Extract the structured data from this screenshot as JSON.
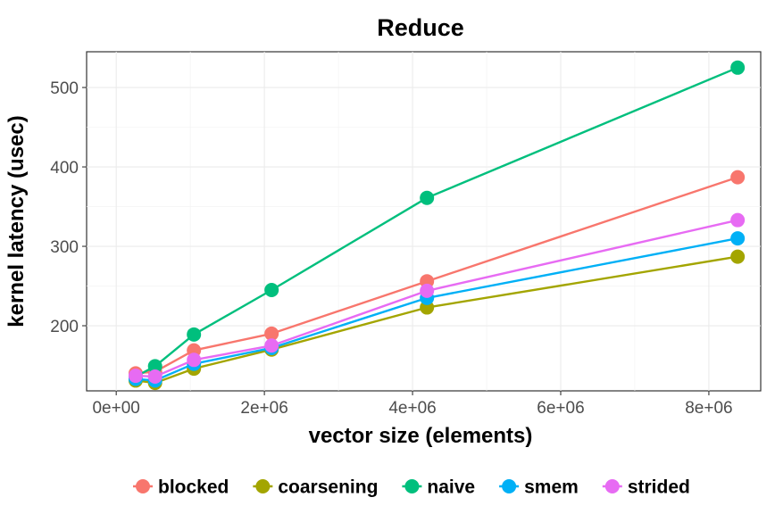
{
  "chart_data": {
    "type": "line",
    "title": "Reduce",
    "xlabel": "vector size (elements)",
    "ylabel": "kernel latency (usec)",
    "xlim": [
      -400000,
      8700000
    ],
    "ylim": [
      118,
      545
    ],
    "x_ticks": [
      {
        "value": 0,
        "label": "0e+00"
      },
      {
        "value": 2000000,
        "label": "2e+06"
      },
      {
        "value": 4000000,
        "label": "4e+06"
      },
      {
        "value": 6000000,
        "label": "6e+06"
      },
      {
        "value": 8000000,
        "label": "8e+06"
      }
    ],
    "y_ticks": [
      {
        "value": 200,
        "label": "200"
      },
      {
        "value": 300,
        "label": "300"
      },
      {
        "value": 400,
        "label": "400"
      },
      {
        "value": 500,
        "label": "500"
      }
    ],
    "grid": true,
    "legend_position": "bottom",
    "x": [
      262144,
      524288,
      1048576,
      2097152,
      4194304,
      8388608
    ],
    "series": [
      {
        "name": "blocked",
        "color": "#F8766D",
        "values": [
          140,
          142,
          169,
          190,
          256,
          387
        ]
      },
      {
        "name": "coarsening",
        "color": "#A3A500",
        "values": [
          131,
          128,
          146,
          170,
          223,
          287
        ]
      },
      {
        "name": "naive",
        "color": "#00BF7D",
        "values": [
          136,
          149,
          189,
          245,
          361,
          525
        ]
      },
      {
        "name": "smem",
        "color": "#00B0F6",
        "values": [
          133,
          131,
          152,
          172,
          235,
          310
        ]
      },
      {
        "name": "strided",
        "color": "#E76BF3",
        "values": [
          137,
          136,
          157,
          175,
          244,
          333
        ]
      }
    ]
  }
}
